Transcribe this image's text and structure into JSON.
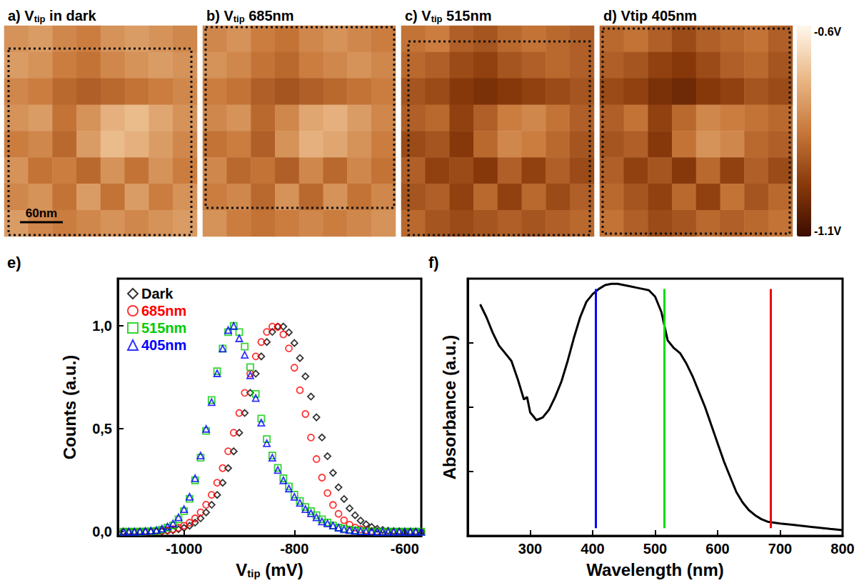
{
  "chart_data": [
    {
      "type": "heatmap",
      "title": [
        {
          "text": "a) V"
        },
        {
          "text": "tip",
          "sub": true
        },
        {
          "text": " in dark"
        }
      ],
      "scale_bar": {
        "label": "60nm",
        "length": 60,
        "field": 270
      },
      "cells": [
        [
          -0.8,
          -0.78,
          -0.82,
          -0.84,
          -0.8,
          -0.78,
          -0.8,
          -0.82
        ],
        [
          -0.78,
          -0.8,
          -0.84,
          -0.86,
          -0.82,
          -0.8,
          -0.78,
          -0.8
        ],
        [
          -0.82,
          -0.84,
          -0.88,
          -0.9,
          -0.88,
          -0.86,
          -0.84,
          -0.82
        ],
        [
          -0.8,
          -0.78,
          -0.86,
          -0.8,
          -0.74,
          -0.72,
          -0.76,
          -0.8
        ],
        [
          -0.84,
          -0.82,
          -0.88,
          -0.78,
          -0.72,
          -0.74,
          -0.78,
          -0.82
        ],
        [
          -0.8,
          -0.86,
          -0.84,
          -0.88,
          -0.8,
          -0.86,
          -0.8,
          -0.84
        ],
        [
          -0.82,
          -0.8,
          -0.86,
          -0.78,
          -0.86,
          -0.78,
          -0.84,
          -0.8
        ],
        [
          -0.78,
          -0.82,
          -0.84,
          -0.82,
          -0.8,
          -0.82,
          -0.8,
          -0.78
        ]
      ]
    },
    {
      "type": "heatmap",
      "title": [
        {
          "text": "b) V"
        },
        {
          "text": "tip",
          "sub": true
        },
        {
          "text": " 685nm"
        }
      ],
      "cells": [
        [
          -0.82,
          -0.8,
          -0.84,
          -0.86,
          -0.82,
          -0.8,
          -0.82,
          -0.84
        ],
        [
          -0.8,
          -0.82,
          -0.86,
          -0.88,
          -0.84,
          -0.82,
          -0.8,
          -0.82
        ],
        [
          -0.84,
          -0.86,
          -0.9,
          -0.92,
          -0.9,
          -0.88,
          -0.86,
          -0.84
        ],
        [
          -0.82,
          -0.8,
          -0.88,
          -0.82,
          -0.76,
          -0.74,
          -0.78,
          -0.82
        ],
        [
          -0.86,
          -0.84,
          -0.9,
          -0.8,
          -0.74,
          -0.76,
          -0.8,
          -0.84
        ],
        [
          -0.82,
          -0.88,
          -0.86,
          -0.9,
          -0.82,
          -0.88,
          -0.82,
          -0.86
        ],
        [
          -0.84,
          -0.82,
          -0.88,
          -0.8,
          -0.88,
          -0.8,
          -0.86,
          -0.82
        ],
        [
          -0.8,
          -0.84,
          -0.86,
          -0.84,
          -0.82,
          -0.84,
          -0.82,
          -0.8
        ]
      ]
    },
    {
      "type": "heatmap",
      "title": [
        {
          "text": "c) V"
        },
        {
          "text": "tip",
          "sub": true
        },
        {
          "text": " 515nm"
        }
      ],
      "cells": [
        [
          -0.86,
          -0.84,
          -0.9,
          -0.92,
          -0.88,
          -0.86,
          -0.88,
          -0.9
        ],
        [
          -0.88,
          -0.9,
          -0.94,
          -0.96,
          -0.92,
          -0.9,
          -0.88,
          -0.9
        ],
        [
          -0.92,
          -0.94,
          -0.98,
          -1.0,
          -0.98,
          -0.96,
          -0.94,
          -0.92
        ],
        [
          -0.9,
          -0.88,
          -0.96,
          -0.9,
          -0.84,
          -0.82,
          -0.86,
          -0.9
        ],
        [
          -0.94,
          -0.92,
          -0.98,
          -0.88,
          -0.82,
          -0.84,
          -0.88,
          -0.92
        ],
        [
          -0.9,
          -0.96,
          -0.94,
          -0.98,
          -0.9,
          -0.96,
          -0.9,
          -0.94
        ],
        [
          -0.92,
          -0.9,
          -0.96,
          -0.88,
          -0.96,
          -0.88,
          -0.94,
          -0.9
        ],
        [
          -0.88,
          -0.92,
          -0.94,
          -0.92,
          -0.9,
          -0.92,
          -0.9,
          -0.88
        ]
      ]
    },
    {
      "type": "heatmap",
      "title": [
        {
          "text": "d) Vtip 405nm"
        }
      ],
      "colorbar": {
        "range": [
          -1.1,
          -0.6
        ],
        "ticks": [
          {
            "value": -0.6,
            "label": "-0.6V"
          },
          {
            "value": -1.1,
            "label": "-1.1V"
          }
        ]
      },
      "cells": [
        [
          -0.88,
          -0.86,
          -0.9,
          -0.94,
          -0.9,
          -0.88,
          -0.86,
          -0.9
        ],
        [
          -0.9,
          -0.92,
          -0.96,
          -0.98,
          -0.94,
          -0.9,
          -0.88,
          -0.92
        ],
        [
          -0.94,
          -0.96,
          -1.0,
          -1.02,
          -0.98,
          -0.96,
          -0.92,
          -0.94
        ],
        [
          -0.9,
          -0.86,
          -0.96,
          -0.88,
          -0.82,
          -0.84,
          -0.86,
          -0.88
        ],
        [
          -0.92,
          -0.9,
          -0.98,
          -0.86,
          -0.8,
          -0.82,
          -0.88,
          -0.9
        ],
        [
          -0.9,
          -0.96,
          -0.92,
          -0.98,
          -0.88,
          -0.96,
          -0.9,
          -0.94
        ],
        [
          -0.88,
          -0.92,
          -0.96,
          -0.88,
          -0.96,
          -0.86,
          -0.92,
          -0.88
        ],
        [
          -0.86,
          -0.9,
          -0.94,
          -0.92,
          -0.88,
          -0.9,
          -0.88,
          -0.86
        ]
      ]
    },
    {
      "type": "scatter",
      "panel": "e)",
      "xlabel": [
        {
          "text": "V"
        },
        {
          "text": "tip",
          "sub": true
        },
        {
          "text": " (mV)"
        }
      ],
      "ylabel": "Counts (a.u.)",
      "x": [
        -1110,
        -1100,
        -1090,
        -1080,
        -1070,
        -1060,
        -1050,
        -1040,
        -1030,
        -1020,
        -1010,
        -1000,
        -990,
        -980,
        -970,
        -960,
        -950,
        -940,
        -930,
        -920,
        -910,
        -900,
        -890,
        -880,
        -870,
        -860,
        -850,
        -840,
        -830,
        -820,
        -810,
        -800,
        -790,
        -780,
        -770,
        -760,
        -750,
        -740,
        -730,
        -720,
        -710,
        -700,
        -690,
        -680,
        -670,
        -660,
        -650,
        -640,
        -630,
        -620,
        -610,
        -600,
        -590,
        -580,
        -570,
        -560
      ],
      "series": [
        {
          "name": "Dark",
          "color": "#000000",
          "marker": "diamond",
          "values": [
            0,
            0,
            0,
            0,
            0,
            0,
            0.001,
            0.002,
            0.004,
            0.007,
            0.012,
            0.019,
            0.029,
            0.044,
            0.065,
            0.094,
            0.131,
            0.179,
            0.238,
            0.309,
            0.391,
            0.481,
            0.577,
            0.675,
            0.768,
            0.852,
            0.922,
            0.971,
            0.997,
            0.997,
            0.969,
            0.917,
            0.844,
            0.755,
            0.657,
            0.556,
            0.458,
            0.367,
            0.286,
            0.216,
            0.159,
            0.114,
            0.08,
            0.054,
            0.036,
            0.023,
            0.014,
            0.009,
            0.005,
            0.003,
            0.002,
            0.001,
            0,
            0,
            0,
            0
          ]
        },
        {
          "name": "685nm",
          "color": "#ff0000",
          "marker": "circle",
          "values": [
            0,
            0,
            0,
            0,
            0,
            0.001,
            0.002,
            0.004,
            0.007,
            0.012,
            0.019,
            0.029,
            0.044,
            0.065,
            0.094,
            0.131,
            0.179,
            0.238,
            0.309,
            0.391,
            0.481,
            0.577,
            0.675,
            0.768,
            0.852,
            0.922,
            0.971,
            0.997,
            0.995,
            0.959,
            0.891,
            0.797,
            0.688,
            0.572,
            0.458,
            0.353,
            0.263,
            0.188,
            0.13,
            0.087,
            0.056,
            0.034,
            0.02,
            0.012,
            0.007,
            0.003,
            0.002,
            0.001,
            0,
            0,
            0,
            0,
            0,
            0,
            0,
            0
          ]
        },
        {
          "name": "515nm",
          "color": "#00cc00",
          "marker": "square",
          "values": [
            0,
            0,
            0,
            0,
            0.001,
            0.002,
            0.004,
            0.01,
            0.02,
            0.03,
            0.06,
            0.1,
            0.16,
            0.25,
            0.36,
            0.49,
            0.64,
            0.78,
            0.89,
            0.97,
            1.0,
            0.97,
            0.9,
            0.8,
            0.67,
            0.55,
            0.45,
            0.37,
            0.31,
            0.26,
            0.22,
            0.18,
            0.15,
            0.12,
            0.1,
            0.08,
            0.06,
            0.045,
            0.03,
            0.02,
            0.015,
            0.01,
            0.006,
            0.004,
            0.002,
            0.001,
            0,
            0,
            0,
            0,
            0,
            0,
            0,
            0,
            0,
            0
          ]
        },
        {
          "name": "405nm",
          "color": "#0000ff",
          "marker": "triangle",
          "values": [
            0,
            0,
            0,
            0.001,
            0.003,
            0.005,
            0.008,
            0.015,
            0.025,
            0.04,
            0.07,
            0.11,
            0.17,
            0.26,
            0.37,
            0.5,
            0.63,
            0.77,
            0.89,
            0.98,
            1.0,
            0.94,
            0.86,
            0.76,
            0.65,
            0.53,
            0.43,
            0.36,
            0.3,
            0.25,
            0.21,
            0.17,
            0.14,
            0.11,
            0.09,
            0.07,
            0.05,
            0.04,
            0.03,
            0.02,
            0.012,
            0.008,
            0.005,
            0.003,
            0.002,
            0.001,
            0,
            0,
            0,
            0,
            0,
            0,
            0,
            0,
            0,
            0
          ]
        }
      ],
      "xlim": [
        -1120,
        -570
      ],
      "ylim": [
        -0.02,
        1.23
      ],
      "xticks": [
        -1000,
        -800,
        -600
      ],
      "yticks": [
        {
          "value": 0,
          "label": "0,0"
        },
        {
          "value": 0.5,
          "label": "0,5"
        },
        {
          "value": 1,
          "label": "1,0"
        }
      ],
      "legend": "upper left"
    },
    {
      "type": "line",
      "panel": "f)",
      "xlabel": "Wavelength (nm)",
      "ylabel": "Absorbance (a.u.)",
      "x": [
        220,
        230,
        240,
        250,
        260,
        270,
        280,
        290,
        295,
        300,
        310,
        320,
        330,
        340,
        350,
        360,
        370,
        380,
        390,
        400,
        410,
        420,
        430,
        440,
        450,
        460,
        470,
        480,
        490,
        500,
        510,
        520,
        530,
        540,
        550,
        560,
        570,
        580,
        590,
        600,
        610,
        620,
        630,
        640,
        650,
        660,
        670,
        680,
        700,
        720,
        750,
        780,
        800
      ],
      "values": [
        0.9,
        0.85,
        0.79,
        0.74,
        0.71,
        0.68,
        0.61,
        0.53,
        0.54,
        0.48,
        0.45,
        0.46,
        0.49,
        0.54,
        0.6,
        0.68,
        0.77,
        0.85,
        0.91,
        0.94,
        0.96,
        0.975,
        0.98,
        0.98,
        0.975,
        0.97,
        0.965,
        0.96,
        0.955,
        0.93,
        0.87,
        0.76,
        0.73,
        0.71,
        0.67,
        0.62,
        0.56,
        0.5,
        0.43,
        0.36,
        0.29,
        0.23,
        0.17,
        0.13,
        0.1,
        0.08,
        0.065,
        0.055,
        0.048,
        0.043,
        0.035,
        0.027,
        0.022
      ],
      "color": "#000000",
      "xlim": [
        200,
        800
      ],
      "ylim": [
        0,
        1
      ],
      "xticks": [
        300,
        400,
        500,
        600,
        700,
        800
      ],
      "yticks": [
        0.25,
        0.5,
        0.75
      ],
      "tick_labels": "x",
      "markers": [
        {
          "x": 405,
          "y": [
            0.03,
            0.96
          ],
          "color": "#0000ff"
        },
        {
          "x": 515,
          "y": [
            0.03,
            0.96
          ],
          "color": "#00dd00"
        },
        {
          "x": 685,
          "y": [
            0.03,
            0.96
          ],
          "color": "#ee0000"
        }
      ]
    }
  ]
}
